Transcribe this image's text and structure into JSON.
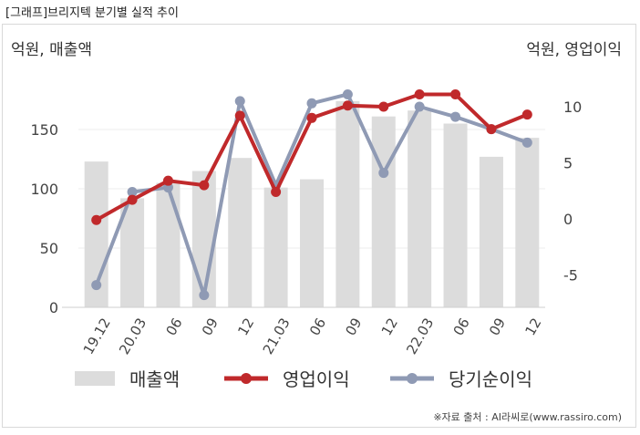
{
  "page": {
    "title": "[그래프]브리지텍 분기별 실적 추이",
    "source": "※자료 출처 : AI라씨로(www.rassiro.com)"
  },
  "chart_data": {
    "type": "bar",
    "title": "",
    "categories": [
      "19.12",
      "20.03",
      "06",
      "09",
      "12",
      "21.03",
      "06",
      "09",
      "12",
      "22.03",
      "06",
      "09",
      "12"
    ],
    "y_left": {
      "label": "억원, 매출액",
      "ylim": [
        0,
        200
      ],
      "ticks": [
        0,
        50,
        100,
        150
      ]
    },
    "y_right": {
      "label": "억원, 영업이익",
      "ylim": [
        -8,
        12
      ],
      "ticks": [
        -5,
        0,
        5,
        10
      ]
    },
    "grid": "horizontal",
    "legend": "bottom",
    "series": [
      {
        "name": "매출액",
        "type": "bar",
        "axis": "left",
        "color": "#dcdcdc",
        "values": [
          123,
          92,
          105,
          115,
          126,
          101,
          108,
          174,
          161,
          166,
          155,
          127,
          143
        ]
      },
      {
        "name": "영업이익",
        "type": "line",
        "axis": "right",
        "color": "#c0292b",
        "values": [
          -0.1,
          1.7,
          3.4,
          3.0,
          9.2,
          2.4,
          9.0,
          10.1,
          10.0,
          11.1,
          11.1,
          8.0,
          9.3
        ]
      },
      {
        "name": "당기순이익",
        "type": "line",
        "axis": "right",
        "color": "#8f9ab4",
        "values": [
          -5.9,
          2.4,
          2.8,
          -6.8,
          10.5,
          3.0,
          10.3,
          11.1,
          4.1,
          10.0,
          9.1,
          8.0,
          6.8
        ]
      }
    ]
  }
}
